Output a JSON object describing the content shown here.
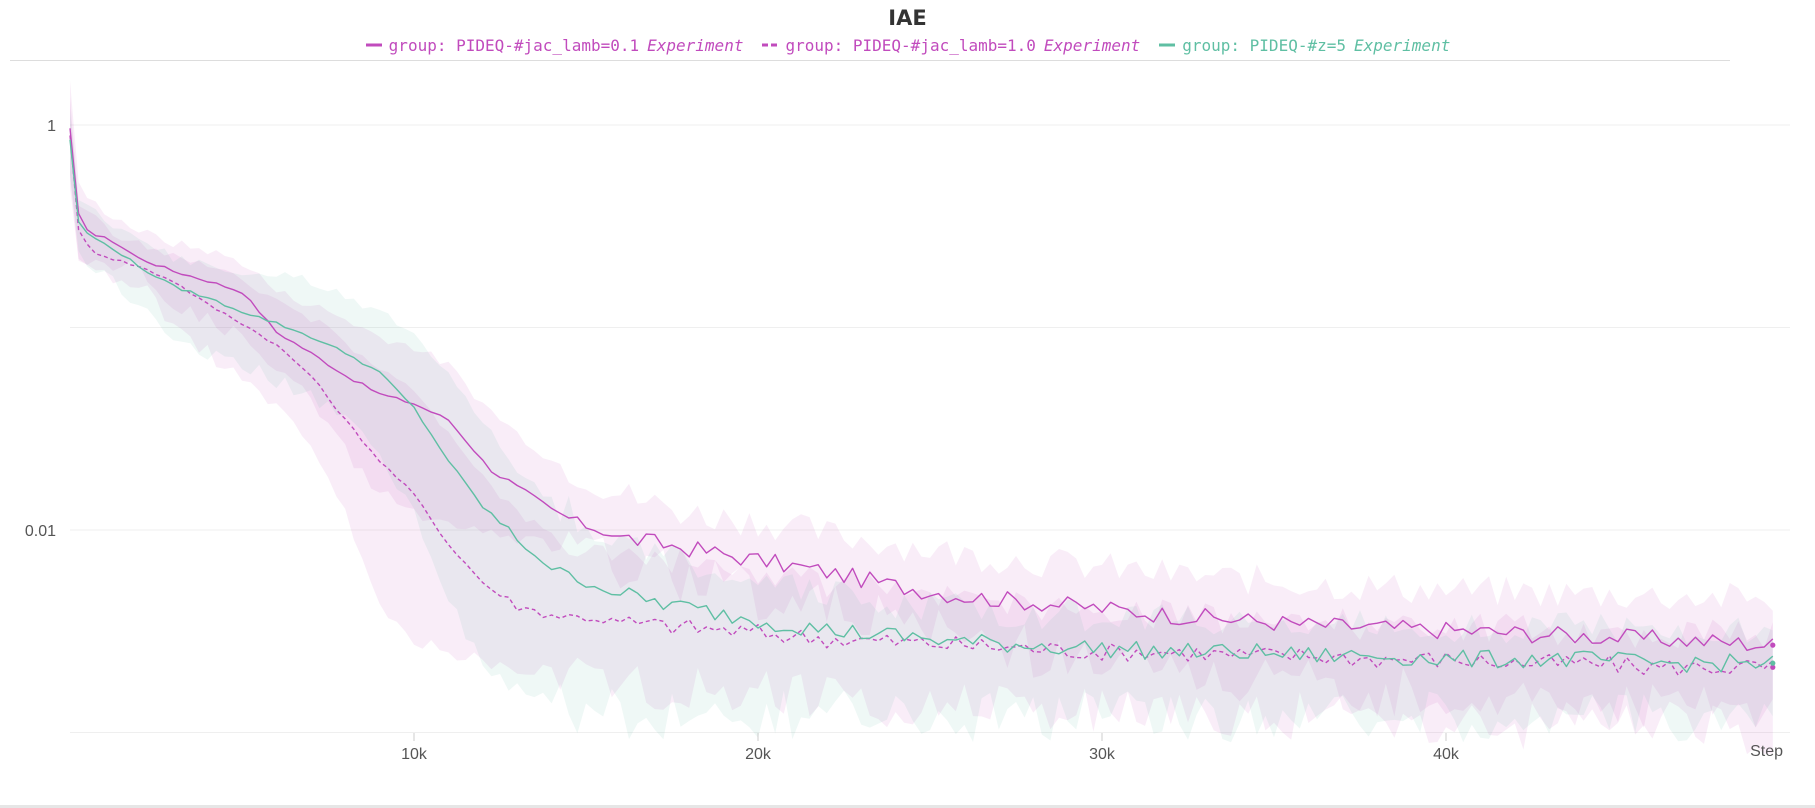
{
  "chart_data": {
    "type": "line",
    "title": "IAE",
    "xlabel": "Step",
    "ylabel": "",
    "x_scale": "linear",
    "y_scale": "log",
    "xlim": [
      0,
      50000
    ],
    "ylim": [
      0.001,
      2.0
    ],
    "x_ticks": [
      {
        "v": 10000,
        "label": "10k"
      },
      {
        "v": 20000,
        "label": "20k"
      },
      {
        "v": 30000,
        "label": "30k"
      },
      {
        "v": 40000,
        "label": "40k"
      }
    ],
    "y_ticks": [
      {
        "v": 1,
        "label": "1"
      },
      {
        "v": 0.01,
        "label": "0.01"
      }
    ],
    "y_gridlines": [
      1,
      0.1,
      0.01,
      0.001
    ],
    "grid": true,
    "legend_position": "top-center",
    "series": [
      {
        "name": "group: PIDEQ-#jac_lamb=0.1",
        "tag": "Experiment",
        "color": "#c14bbd",
        "style": "solid",
        "x": [
          0,
          250,
          600,
          1200,
          2000,
          3000,
          4000,
          5000,
          5500,
          6000,
          7000,
          8000,
          9000,
          10000,
          11000,
          12000,
          13000,
          14000,
          15000,
          16000,
          18000,
          20000,
          22000,
          24000,
          26000,
          28000,
          30000,
          32000,
          34000,
          36000,
          38000,
          40000,
          42000,
          44000,
          46000,
          48000,
          49500
        ],
        "y": [
          0.95,
          0.36,
          0.29,
          0.27,
          0.22,
          0.19,
          0.17,
          0.15,
          0.12,
          0.095,
          0.075,
          0.058,
          0.047,
          0.042,
          0.035,
          0.022,
          0.016,
          0.0125,
          0.0105,
          0.0092,
          0.0081,
          0.0071,
          0.0062,
          0.0053,
          0.0047,
          0.0044,
          0.0041,
          0.0038,
          0.0036,
          0.0034,
          0.0033,
          0.0032,
          0.0031,
          0.003,
          0.0029,
          0.0028,
          0.0027
        ],
        "band_low": [
          0.6,
          0.22,
          0.2,
          0.2,
          0.2,
          0.13,
          0.11,
          0.09,
          0.075,
          0.06,
          0.045,
          0.025,
          0.015,
          0.012,
          0.011,
          0.0095,
          0.009,
          0.0085,
          0.0075,
          0.0068,
          0.0058,
          0.0048,
          0.0042,
          0.0035,
          0.003,
          0.0025,
          0.0022,
          0.002,
          0.0018,
          0.0017,
          0.0016,
          0.0015,
          0.0015,
          0.0014,
          0.0014,
          0.0013,
          0.0013
        ],
        "band_high": [
          1.7,
          0.5,
          0.42,
          0.36,
          0.3,
          0.26,
          0.24,
          0.21,
          0.18,
          0.15,
          0.13,
          0.11,
          0.09,
          0.08,
          0.065,
          0.042,
          0.03,
          0.022,
          0.018,
          0.015,
          0.012,
          0.011,
          0.0095,
          0.0085,
          0.0075,
          0.007,
          0.0065,
          0.006,
          0.0057,
          0.0054,
          0.0052,
          0.005,
          0.0049,
          0.0048,
          0.0047,
          0.0046,
          0.0045
        ]
      },
      {
        "name": "group: PIDEQ-#jac_lamb=1.0",
        "tag": "Experiment",
        "color": "#c14bbd",
        "style": "dashed",
        "x": [
          0,
          250,
          600,
          1200,
          2000,
          3000,
          4000,
          5000,
          6000,
          7000,
          8000,
          9000,
          10000,
          11000,
          12000,
          13000,
          14000,
          15000,
          16000,
          18000,
          20000,
          22000,
          24000,
          26000,
          28000,
          30000,
          32000,
          34000,
          36000,
          38000,
          40000,
          42000,
          44000,
          46000,
          48000,
          49500
        ],
        "y": [
          0.9,
          0.3,
          0.24,
          0.22,
          0.2,
          0.17,
          0.13,
          0.105,
          0.082,
          0.058,
          0.035,
          0.022,
          0.015,
          0.0085,
          0.0055,
          0.0042,
          0.0038,
          0.0037,
          0.0035,
          0.0033,
          0.0031,
          0.0029,
          0.0028,
          0.0027,
          0.0026,
          0.0025,
          0.0025,
          0.0024,
          0.0024,
          0.0023,
          0.0023,
          0.0022,
          0.0022,
          0.0021,
          0.0021,
          0.0021
        ],
        "band_low": [
          0.5,
          0.2,
          0.19,
          0.18,
          0.17,
          0.1,
          0.075,
          0.055,
          0.04,
          0.025,
          0.012,
          0.004,
          0.0028,
          0.0025,
          0.0023,
          0.0021,
          0.002,
          0.0019,
          0.0018,
          0.0017,
          0.0016,
          0.0015,
          0.0014,
          0.0014,
          0.0013,
          0.0013,
          0.0012,
          0.0012,
          0.0012,
          0.0011,
          0.0011,
          0.0011,
          0.0011,
          0.0011,
          0.001,
          0.001
        ],
        "band_high": [
          1.4,
          0.42,
          0.36,
          0.3,
          0.26,
          0.23,
          0.2,
          0.17,
          0.14,
          0.11,
          0.085,
          0.065,
          0.05,
          0.03,
          0.018,
          0.012,
          0.0095,
          0.0085,
          0.0075,
          0.0068,
          0.006,
          0.0055,
          0.005,
          0.0046,
          0.0043,
          0.004,
          0.0038,
          0.0036,
          0.0035,
          0.0034,
          0.0033,
          0.0032,
          0.0032,
          0.0031,
          0.0031,
          0.0031
        ]
      },
      {
        "name": "group: PIDEQ-#z=5",
        "tag": "Experiment",
        "color": "#5fbfa3",
        "style": "solid",
        "x": [
          0,
          250,
          600,
          1200,
          2000,
          3000,
          4000,
          5000,
          6000,
          7000,
          8000,
          9000,
          10000,
          11000,
          12000,
          13000,
          14000,
          15000,
          16000,
          18000,
          20000,
          22000,
          24000,
          26000,
          28000,
          30000,
          32000,
          34000,
          36000,
          38000,
          40000,
          42000,
          44000,
          46000,
          48000,
          49500
        ],
        "y": [
          0.85,
          0.33,
          0.28,
          0.25,
          0.2,
          0.16,
          0.14,
          0.12,
          0.105,
          0.09,
          0.075,
          0.06,
          0.04,
          0.022,
          0.013,
          0.009,
          0.0065,
          0.0055,
          0.0048,
          0.0041,
          0.0036,
          0.0032,
          0.003,
          0.0028,
          0.0027,
          0.0026,
          0.0025,
          0.0025,
          0.0024,
          0.0024,
          0.0023,
          0.0023,
          0.0023,
          0.0022,
          0.0022,
          0.0022
        ],
        "band_low": [
          0.55,
          0.25,
          0.2,
          0.17,
          0.13,
          0.09,
          0.075,
          0.065,
          0.055,
          0.045,
          0.035,
          0.025,
          0.012,
          0.0045,
          0.0022,
          0.0016,
          0.0014,
          0.0013,
          0.0012,
          0.0012,
          0.0012,
          0.0012,
          0.0012,
          0.0012,
          0.0012,
          0.0012,
          0.0012,
          0.0012,
          0.0012,
          0.0012,
          0.0012,
          0.0012,
          0.0012,
          0.0012,
          0.0012,
          0.0012
        ],
        "band_high": [
          1.2,
          0.44,
          0.38,
          0.33,
          0.28,
          0.22,
          0.2,
          0.19,
          0.18,
          0.17,
          0.14,
          0.12,
          0.095,
          0.06,
          0.035,
          0.02,
          0.014,
          0.011,
          0.009,
          0.007,
          0.0055,
          0.0048,
          0.0044,
          0.0041,
          0.0039,
          0.0037,
          0.0036,
          0.0035,
          0.0034,
          0.0034,
          0.0033,
          0.0033,
          0.0033,
          0.0032,
          0.0032,
          0.0032
        ]
      }
    ]
  }
}
